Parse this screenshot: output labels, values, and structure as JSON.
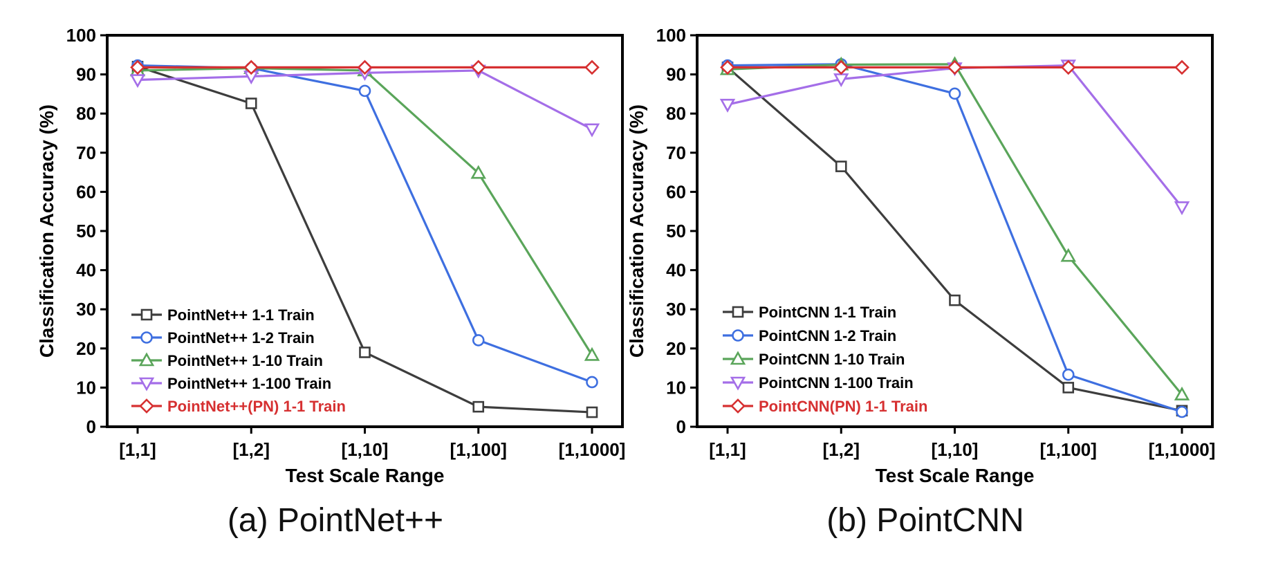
{
  "chart_data": [
    {
      "type": "line",
      "caption": "(a) PointNet++",
      "xlabel": "Test Scale Range",
      "ylabel": "Classification Accuracy (%)",
      "categories": [
        "[1,1]",
        "[1,2]",
        "[1,10]",
        "[1,100]",
        "[1,1000]"
      ],
      "ylim": [
        0,
        100
      ],
      "yticks": [
        0,
        10,
        20,
        30,
        40,
        50,
        60,
        70,
        80,
        90,
        100
      ],
      "legend_position": "bottom-left",
      "series": [
        {
          "name": "PointNet++ 1-1 Train",
          "values": [
            92.0,
            82.6,
            19.0,
            5.1,
            3.7
          ],
          "color": "#3d3d3d",
          "marker": "square",
          "label_color": "#000000"
        },
        {
          "name": "PointNet++ 1-2 Train",
          "values": [
            92.3,
            91.6,
            85.8,
            22.1,
            11.4
          ],
          "color": "#3e6fe0",
          "marker": "circle",
          "label_color": "#000000"
        },
        {
          "name": "PointNet++ 1-10 Train",
          "values": [
            91.0,
            91.6,
            91.0,
            64.8,
            18.3
          ],
          "color": "#5aa55a",
          "marker": "triangle-up",
          "label_color": "#000000"
        },
        {
          "name": "PointNet++ 1-100 Train",
          "values": [
            88.6,
            89.5,
            90.4,
            91.0,
            76.0
          ],
          "color": "#a46ee8",
          "marker": "triangle-down",
          "label_color": "#000000"
        },
        {
          "name": "PointNet++(PN) 1-1 Train",
          "values": [
            91.8,
            91.8,
            91.8,
            91.8,
            91.8
          ],
          "color": "#d63031",
          "marker": "diamond",
          "label_color": "#d63031"
        }
      ]
    },
    {
      "type": "line",
      "caption": "(b) PointCNN",
      "xlabel": "Test Scale Range",
      "ylabel": "Classification Accuracy (%)",
      "categories": [
        "[1,1]",
        "[1,2]",
        "[1,10]",
        "[1,100]",
        "[1,1000]"
      ],
      "ylim": [
        0,
        100
      ],
      "yticks": [
        0,
        10,
        20,
        30,
        40,
        50,
        60,
        70,
        80,
        90,
        100
      ],
      "legend_position": "bottom-left",
      "series": [
        {
          "name": "PointCNN 1-1 Train",
          "values": [
            91.8,
            66.5,
            32.3,
            10.0,
            4.1
          ],
          "color": "#3d3d3d",
          "marker": "square",
          "label_color": "#000000"
        },
        {
          "name": "PointCNN 1-2 Train",
          "values": [
            92.3,
            92.6,
            85.1,
            13.3,
            3.8
          ],
          "color": "#3e6fe0",
          "marker": "circle",
          "label_color": "#000000"
        },
        {
          "name": "PointCNN 1-10 Train",
          "values": [
            91.3,
            92.5,
            92.6,
            43.6,
            8.2
          ],
          "color": "#5aa55a",
          "marker": "triangle-up",
          "label_color": "#000000"
        },
        {
          "name": "PointCNN 1-100 Train",
          "values": [
            82.3,
            88.8,
            91.6,
            92.3,
            56.1
          ],
          "color": "#a46ee8",
          "marker": "triangle-down",
          "label_color": "#000000"
        },
        {
          "name": "PointCNN(PN) 1-1 Train",
          "values": [
            91.8,
            91.8,
            91.8,
            91.8,
            91.8
          ],
          "color": "#d63031",
          "marker": "diamond",
          "label_color": "#d63031"
        }
      ]
    }
  ]
}
